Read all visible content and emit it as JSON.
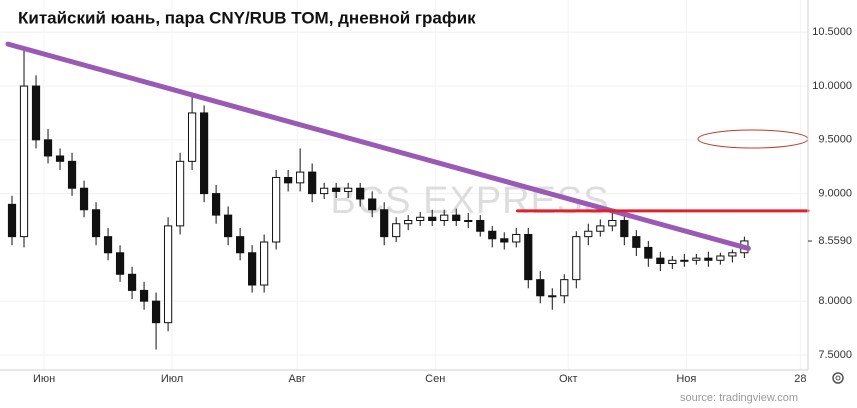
{
  "chart_data": {
    "type": "candlestick",
    "title": "Китайский юань, пара CNY/RUB TOM, дневной график",
    "watermark": "BCS EXPRESS",
    "source": "source: tradingview.com",
    "up_color": "#ffffff",
    "down_color": "#111111",
    "wick_color": "#111111",
    "x": [
      1,
      2,
      3,
      4,
      5,
      6,
      7,
      8,
      9,
      10,
      11,
      12,
      13,
      14,
      15,
      16,
      17,
      18,
      19,
      20,
      21,
      22,
      23,
      24,
      25,
      26,
      27,
      28,
      29,
      30,
      31,
      32,
      33,
      34,
      35,
      36,
      37,
      38,
      39,
      40,
      41,
      42,
      43,
      44,
      45,
      46,
      47,
      48,
      49,
      50,
      51,
      52,
      53,
      54,
      55,
      56,
      57,
      58,
      59,
      60,
      61,
      62
    ],
    "open": [
      8.9,
      8.6,
      10.0,
      9.5,
      9.35,
      9.3,
      9.05,
      8.85,
      8.6,
      8.45,
      8.25,
      8.1,
      8.0,
      7.8,
      8.7,
      9.3,
      9.75,
      9.0,
      8.8,
      8.6,
      8.45,
      8.15,
      8.55,
      9.15,
      9.1,
      9.2,
      9.0,
      9.05,
      9.02,
      9.05,
      8.95,
      8.85,
      8.6,
      8.72,
      8.75,
      8.78,
      8.75,
      8.8,
      8.75,
      8.75,
      8.65,
      8.58,
      8.55,
      8.62,
      8.2,
      8.05,
      8.05,
      8.2,
      8.6,
      8.65,
      8.7,
      8.75,
      8.6,
      8.5,
      8.4,
      8.35,
      8.38,
      8.38,
      8.4,
      8.38,
      8.42,
      8.45
    ],
    "high": [
      8.98,
      10.35,
      10.1,
      9.6,
      9.42,
      9.38,
      9.12,
      8.92,
      8.68,
      8.52,
      8.32,
      8.18,
      8.08,
      8.78,
      9.38,
      9.9,
      9.82,
      9.08,
      8.88,
      8.68,
      8.52,
      8.62,
      9.22,
      9.22,
      9.42,
      9.28,
      9.1,
      9.1,
      9.1,
      9.1,
      9.02,
      8.92,
      8.78,
      8.8,
      8.83,
      8.85,
      8.85,
      8.86,
      8.82,
      8.8,
      8.7,
      8.64,
      8.68,
      8.68,
      8.28,
      8.12,
      8.25,
      8.65,
      8.72,
      8.76,
      8.82,
      8.8,
      8.66,
      8.56,
      8.46,
      8.42,
      8.44,
      8.44,
      8.46,
      8.45,
      8.48,
      8.6
    ],
    "low": [
      8.52,
      8.5,
      9.42,
      9.28,
      9.22,
      8.98,
      8.78,
      8.52,
      8.38,
      8.18,
      8.02,
      7.92,
      7.55,
      7.72,
      8.62,
      9.22,
      8.92,
      8.72,
      8.52,
      8.38,
      8.08,
      8.08,
      8.48,
      9.02,
      9.02,
      8.92,
      8.95,
      8.96,
      8.96,
      8.88,
      8.78,
      8.52,
      8.55,
      8.66,
      8.7,
      8.7,
      8.7,
      8.7,
      8.68,
      8.6,
      8.5,
      8.48,
      8.5,
      8.12,
      7.98,
      7.92,
      7.98,
      8.12,
      8.52,
      8.6,
      8.65,
      8.52,
      8.42,
      8.32,
      8.28,
      8.3,
      8.32,
      8.34,
      8.32,
      8.34,
      8.36,
      8.4
    ],
    "close": [
      8.6,
      10.0,
      9.5,
      9.35,
      9.3,
      9.05,
      8.85,
      8.6,
      8.45,
      8.25,
      8.1,
      8.0,
      7.8,
      8.7,
      9.3,
      9.75,
      9.0,
      8.8,
      8.6,
      8.45,
      8.15,
      8.55,
      9.15,
      9.1,
      9.2,
      9.0,
      9.05,
      9.02,
      9.05,
      8.95,
      8.85,
      8.6,
      8.72,
      8.75,
      8.78,
      8.75,
      8.8,
      8.75,
      8.75,
      8.65,
      8.58,
      8.55,
      8.62,
      8.2,
      8.05,
      8.05,
      8.2,
      8.6,
      8.65,
      8.7,
      8.75,
      8.6,
      8.5,
      8.4,
      8.35,
      8.38,
      8.38,
      8.4,
      8.38,
      8.42,
      8.45,
      8.56
    ],
    "xlim": [
      0,
      67.3
    ],
    "xticks": [
      {
        "value": 3.67,
        "label": "Июн"
      },
      {
        "value": 14.33,
        "label": "Июл"
      },
      {
        "value": 24.75,
        "label": "Авг"
      },
      {
        "value": 36.25,
        "label": "Сен"
      },
      {
        "value": 47.33,
        "label": "Окт"
      },
      {
        "value": 57.17,
        "label": "Ноя"
      },
      {
        "value": 66.67,
        "label": "28"
      }
    ],
    "ylim": [
      7.36,
      10.8
    ],
    "yticks": [
      {
        "value": 10.5,
        "label": "10.5000"
      },
      {
        "value": 10.0,
        "label": "10.0000"
      },
      {
        "value": 9.5,
        "label": "9.5000"
      },
      {
        "value": 9.0,
        "label": "9.0000"
      },
      {
        "value": 8.0,
        "label": "8.0000"
      },
      {
        "value": 7.5,
        "label": "7.5000"
      }
    ],
    "last_price": {
      "value": 8.559,
      "label": "8.5590"
    },
    "trendline": {
      "color": "#9b59b6",
      "x": [
        0.67,
        62.33
      ],
      "y": [
        10.39,
        8.49
      ]
    },
    "resistance": {
      "color": "#e0202a",
      "x": [
        43.1,
        67.3
      ],
      "y": [
        8.84,
        8.84
      ]
    },
    "grid": true
  }
}
